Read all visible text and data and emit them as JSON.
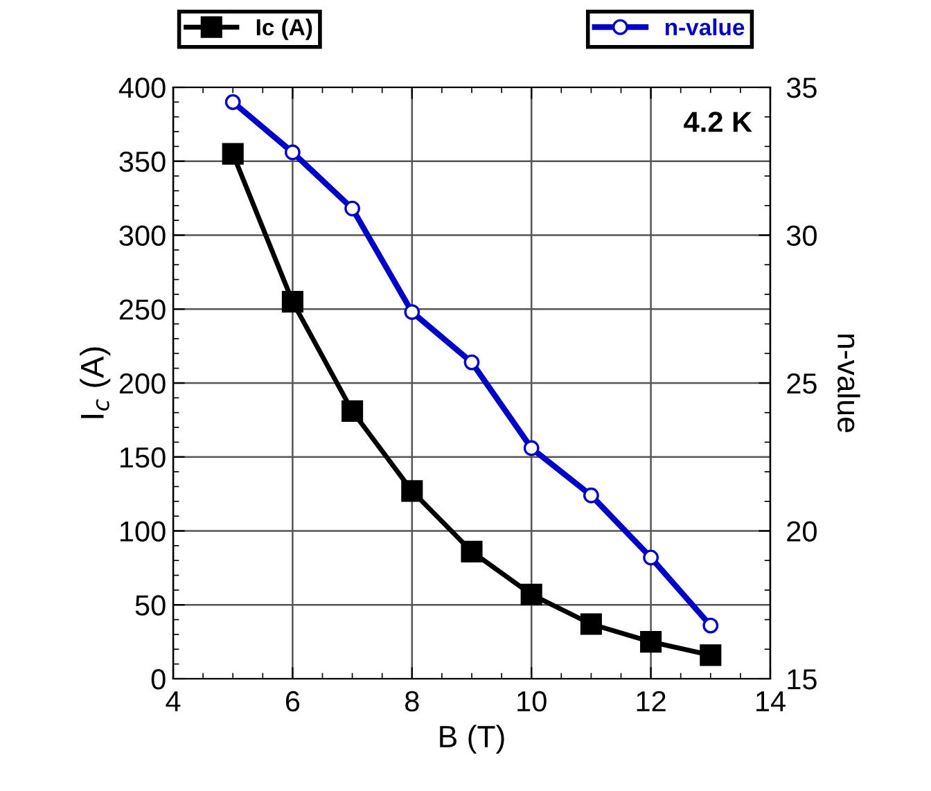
{
  "chart_data": {
    "type": "line",
    "xlabel": "B (T)",
    "ylabel": "I$_{c}$ (A)",
    "y2label": "n-value",
    "x": [
      5,
      6,
      7,
      8,
      9,
      10,
      11,
      12,
      13
    ],
    "series": [
      {
        "name": "Ic (A)",
        "color": "#000000",
        "marker": "square",
        "values": [
          355,
          255,
          181,
          127,
          86,
          57,
          37,
          25,
          16
        ]
      },
      {
        "name": "n-value",
        "color": "#0000c8",
        "marker": "circle",
        "axis": "y2",
        "values": [
          34.5,
          32.8,
          30.9,
          27.4,
          25.7,
          22.8,
          21.2,
          19.1,
          16.8
        ]
      }
    ],
    "xlim": [
      4,
      14
    ],
    "xticks": [
      4,
      6,
      8,
      10,
      12,
      14
    ],
    "ylim": [
      0,
      400
    ],
    "yticks": [
      0,
      50,
      100,
      150,
      200,
      250,
      300,
      350,
      400
    ],
    "y2lim": [
      15,
      35
    ],
    "y2ticks": [
      15,
      20,
      25,
      30,
      35
    ],
    "grid": true,
    "legend": "top",
    "line_style": "solid",
    "annotations": [
      "4.2 K"
    ]
  }
}
